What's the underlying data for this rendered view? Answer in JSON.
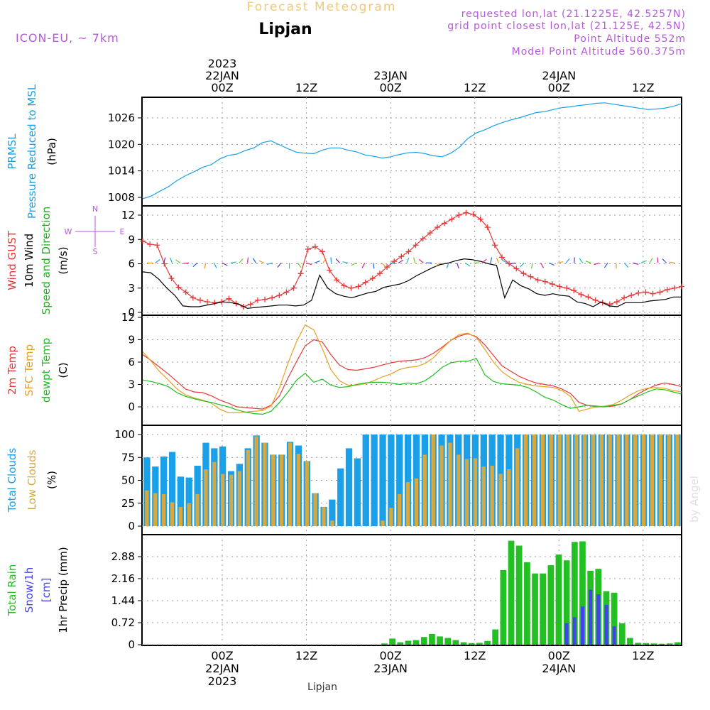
{
  "header": {
    "top_title": "Forecast Meteogram",
    "location": "Lipjan",
    "model": "ICON-EU, ~ 7km",
    "requested": "requested lon,lat (21.1225E, 42.5257N)",
    "gridpoint": "grid point closest lon,lat (21.125E, 42.5N)",
    "point_alt": "Point Altitude 552m",
    "model_alt": "Model Point Altitude 560.375m",
    "footer_location": "Lipjan",
    "watermark": "by Angel"
  },
  "colors": {
    "prmsl": "#1aa0e8",
    "gust": "#e83838",
    "wind": "#000000",
    "winddir": "#20b020",
    "t2m": "#e83838",
    "sfc": "#e8a020",
    "dewpt": "#20c020",
    "totcloud": "#1aa0e8",
    "lowcloud": "#d8a840",
    "rain": "#22c022",
    "snow": "#4444ee",
    "purple": "#b45ad8",
    "title_orange": "#f0c878"
  },
  "chart_data": {
    "type": "meteogram",
    "time": {
      "start_hour": -6,
      "step_hours": 1,
      "end_hour": 57,
      "grid_hours": [
        0,
        12,
        24,
        36,
        48,
        60
      ],
      "top_labels": [
        {
          "hour": 0,
          "lines": [
            "2023",
            "22JAN",
            "00Z"
          ]
        },
        {
          "hour": 12,
          "lines": [
            "12Z"
          ]
        },
        {
          "hour": 24,
          "lines": [
            "23JAN",
            "00Z"
          ]
        },
        {
          "hour": 36,
          "lines": [
            "12Z"
          ]
        },
        {
          "hour": 48,
          "lines": [
            "24JAN",
            "00Z"
          ]
        },
        {
          "hour": 60,
          "lines": [
            "12Z"
          ]
        }
      ],
      "bottom_labels": [
        {
          "hour": 0,
          "lines": [
            "00Z",
            "22JAN",
            "2023"
          ]
        },
        {
          "hour": 12,
          "lines": [
            "12Z"
          ]
        },
        {
          "hour": 24,
          "lines": [
            "00Z",
            "23JAN"
          ]
        },
        {
          "hour": 36,
          "lines": [
            "12Z"
          ]
        },
        {
          "hour": 48,
          "lines": [
            "00Z",
            "24JAN"
          ]
        },
        {
          "hour": 60,
          "lines": [
            "12Z"
          ]
        }
      ]
    },
    "panels": [
      {
        "id": "pressure",
        "labels": [
          {
            "text": "PRMSL",
            "color": "prmsl"
          },
          {
            "text": "Pressure Reduced to MSL",
            "color": "prmsl"
          },
          {
            "text": "(hPa)",
            "color": "wind"
          }
        ],
        "ylim": [
          1007,
          1030
        ],
        "yticks": [
          1008,
          1014,
          1020,
          1026
        ],
        "series": [
          {
            "name": "PRMSL",
            "color": "prmsl",
            "style": "line",
            "values": [
              1007.7,
              1008.3,
              1009.4,
              1010.4,
              1011.8,
              1012.9,
              1013.8,
              1014.8,
              1015.4,
              1016.7,
              1017.5,
              1017.8,
              1018.6,
              1019.2,
              1020.4,
              1020.8,
              1019.9,
              1019.0,
              1018.2,
              1018.0,
              1017.9,
              1018.7,
              1019.2,
              1019.2,
              1018.7,
              1018.3,
              1017.6,
              1017.3,
              1016.9,
              1017.2,
              1017.7,
              1018.1,
              1018.2,
              1017.9,
              1017.4,
              1017.2,
              1018.0,
              1019.3,
              1021.3,
              1022.6,
              1023.3,
              1024.2,
              1024.9,
              1025.5,
              1026.0,
              1026.6,
              1027.2,
              1027.4,
              1027.9,
              1028.3,
              1028.5,
              1028.8,
              1029.0,
              1029.3,
              1029.4,
              1029.1,
              1028.8,
              1028.5,
              1028.2,
              1027.9,
              1028.0,
              1028.2,
              1028.6,
              1029.2
            ]
          }
        ]
      },
      {
        "id": "wind",
        "labels": [
          {
            "text": "Wind GUST",
            "color": "gust"
          },
          {
            "text": "10m Wind",
            "color": "wind"
          },
          {
            "text": "Speed and Direction",
            "color": "winddir"
          },
          {
            "text": "(m/s)",
            "color": "wind"
          }
        ],
        "compass": {
          "n": "N",
          "s": "S",
          "e": "E",
          "w": "W"
        },
        "ylim": [
          0,
          13.5
        ],
        "yticks": [
          0,
          3,
          6,
          9,
          12
        ],
        "series": [
          {
            "name": "Wind GUST",
            "color": "gust",
            "style": "line-markers",
            "values": [
              8.8,
              8.4,
              8.3,
              6.0,
              4.2,
              3.1,
              2.5,
              1.8,
              1.5,
              1.3,
              1.2,
              1.3,
              1.7,
              1.1,
              0.7,
              1.0,
              1.5,
              1.6,
              1.8,
              2.1,
              2.5,
              3.0,
              4.8,
              7.8,
              8.1,
              7.5,
              5.2,
              4.0,
              3.3,
              3.0,
              3.2,
              3.7,
              4.2,
              4.8,
              5.6,
              6.3,
              6.9,
              7.5,
              8.3,
              9.1,
              9.8,
              10.5,
              11.0,
              11.5,
              12.0,
              12.3,
              12.1,
              11.5,
              10.5,
              8.3,
              6.8,
              6.0,
              5.4,
              4.8,
              4.4,
              4.0,
              3.8,
              3.5,
              3.2,
              3.0,
              2.7,
              2.2,
              1.9,
              1.5,
              1.2,
              1.0,
              1.3,
              1.8,
              2.1,
              2.4,
              2.5,
              2.3,
              2.5,
              2.8,
              3.0,
              3.2
            ]
          },
          {
            "name": "10m Wind",
            "color": "wind",
            "style": "line",
            "values": [
              5.0,
              4.9,
              4.1,
              3.0,
              2.1,
              0.8,
              0.7,
              0.7,
              0.9,
              1.1,
              1.3,
              1.2,
              1.0,
              0.5,
              0.6,
              0.7,
              0.8,
              0.9,
              0.9,
              0.8,
              0.9,
              1.5,
              4.6,
              3.0,
              2.3,
              2.0,
              1.8,
              2.1,
              2.4,
              2.6,
              3.1,
              3.3,
              3.5,
              3.9,
              4.5,
              5.0,
              5.5,
              5.9,
              6.1,
              6.4,
              6.6,
              6.5,
              6.3,
              6.0,
              5.8,
              1.8,
              4.0,
              3.3,
              2.9,
              2.3,
              2.1,
              2.3,
              2.1,
              2.0,
              1.3,
              1.1,
              0.7,
              1.3,
              0.8,
              0.7,
              1.2,
              1.2,
              1.2,
              1.4,
              1.5,
              1.6,
              1.9,
              1.9
            ]
          },
          {
            "name": "Wind Direction",
            "color": "winddir",
            "style": "arrows",
            "values": []
          }
        ]
      },
      {
        "id": "temperature",
        "labels": [
          {
            "text": "2m Temp",
            "color": "t2m"
          },
          {
            "text": "SFC Temp",
            "color": "sfc"
          },
          {
            "text": "dewpt Temp",
            "color": "dewpt"
          },
          {
            "text": "(C)",
            "color": "wind"
          }
        ],
        "ylim": [
          -2.5,
          12
        ],
        "yticks": [
          0,
          3,
          6,
          9,
          12
        ],
        "series": [
          {
            "name": "2m Temp",
            "color": "t2m",
            "style": "line",
            "values": [
              7.0,
              6.2,
              5.3,
              4.4,
              3.4,
              2.4,
              2.0,
              1.9,
              1.5,
              0.9,
              0.5,
              0.0,
              -0.1,
              -0.2,
              -0.3,
              0.2,
              1.5,
              3.9,
              6.1,
              8.2,
              9.0,
              8.7,
              7.0,
              5.6,
              5.0,
              4.9,
              5.1,
              5.3,
              5.6,
              5.9,
              6.1,
              6.2,
              6.3,
              6.6,
              7.2,
              8.0,
              8.9,
              9.5,
              9.8,
              9.4,
              8.3,
              6.9,
              5.5,
              4.8,
              4.1,
              3.6,
              3.2,
              3.0,
              2.8,
              2.4,
              1.8,
              0.6,
              0.2,
              0.1,
              0.0,
              0.1,
              0.4,
              1.0,
              1.8,
              2.4,
              2.9,
              3.2,
              3.0,
              2.7
            ]
          },
          {
            "name": "SFC Temp",
            "color": "sfc",
            "style": "line",
            "values": [
              7.4,
              6.1,
              4.7,
              3.6,
              2.4,
              1.6,
              1.2,
              0.9,
              0.5,
              -0.3,
              -0.8,
              -0.8,
              -0.7,
              -0.6,
              -0.5,
              0.1,
              2.6,
              5.9,
              8.8,
              11.0,
              10.3,
              7.8,
              5.0,
              3.5,
              2.9,
              2.9,
              3.1,
              3.5,
              4.0,
              4.4,
              5.0,
              5.3,
              5.4,
              5.8,
              6.6,
              7.8,
              8.9,
              9.7,
              9.9,
              9.3,
              7.7,
              6.0,
              4.7,
              3.9,
              3.3,
              3.0,
              2.8,
              2.7,
              2.6,
              2.2,
              1.4,
              -0.6,
              -0.3,
              0.0,
              0.1,
              0.3,
              0.9,
              1.6,
              2.2,
              2.5,
              2.6,
              2.5,
              2.2,
              2.0
            ]
          },
          {
            "name": "dewpt Temp",
            "color": "dewpt",
            "style": "line",
            "values": [
              3.6,
              3.4,
              3.1,
              2.7,
              1.9,
              1.4,
              1.1,
              0.8,
              0.6,
              0.3,
              0.0,
              -0.4,
              -0.7,
              -0.9,
              -1.0,
              -0.6,
              0.6,
              2.0,
              3.6,
              4.5,
              3.3,
              3.7,
              2.9,
              2.6,
              2.7,
              3.0,
              3.2,
              3.3,
              3.3,
              3.2,
              3.0,
              3.2,
              3.1,
              3.5,
              4.3,
              5.3,
              5.9,
              6.1,
              6.1,
              6.5,
              4.3,
              3.4,
              3.1,
              3.0,
              2.9,
              2.6,
              2.0,
              1.3,
              0.9,
              0.3,
              -0.2,
              0.0,
              0.2,
              0.0,
              0.0,
              0.2,
              0.4,
              1.0,
              1.5,
              2.0,
              2.4,
              2.3,
              2.0,
              1.7
            ]
          }
        ]
      },
      {
        "id": "clouds",
        "labels": [
          {
            "text": "Total Clouds",
            "color": "totcloud"
          },
          {
            "text": "Low Clouds",
            "color": "lowcloud"
          },
          {
            "text": "(%)",
            "color": "wind"
          }
        ],
        "ylim": [
          -2,
          105
        ],
        "yticks": [
          0,
          25,
          50,
          75,
          100
        ],
        "series": [
          {
            "name": "Total Clouds",
            "color": "totcloud",
            "style": "bars",
            "values": [
              75,
              65,
              76,
              81,
              54,
              53,
              66,
              91,
              85,
              87,
              60,
              68,
              85,
              99,
              91,
              78,
              78,
              92,
              88,
              71,
              36,
              21,
              29,
              63,
              85,
              74,
              100,
              100,
              100,
              100,
              100,
              100,
              100,
              100,
              100,
              100,
              100,
              100,
              100,
              100,
              100,
              100,
              100,
              100,
              100,
              100,
              100,
              100,
              100,
              100,
              100,
              100,
              100,
              100,
              100,
              100,
              100,
              100,
              100,
              100,
              100,
              100,
              100,
              100
            ]
          },
          {
            "name": "Low Clouds",
            "color": "lowcloud",
            "style": "bars",
            "values": [
              39,
              36,
              35,
              26,
              21,
              25,
              35,
              62,
              70,
              57,
              56,
              60,
              83,
              98,
              91,
              78,
              78,
              91,
              79,
              71,
              36,
              21,
              6,
              0,
              0,
              0,
              0,
              0,
              6,
              20,
              35,
              48,
              52,
              78,
              100,
              88,
              91,
              78,
              73,
              74,
              65,
              66,
              57,
              62,
              85,
              100,
              100,
              100,
              100,
              100,
              100,
              100,
              100,
              100,
              100,
              100,
              100,
              100,
              100,
              100,
              100,
              100,
              100,
              100
            ]
          }
        ]
      },
      {
        "id": "precip",
        "labels": [
          {
            "text": "Total  Rain",
            "color": "rain"
          },
          {
            "text": "Snow/1h",
            "color": "snow"
          },
          {
            "text": "[cm]",
            "color": "snow"
          },
          {
            "text": "1hr Precip (mm)",
            "color": "wind"
          }
        ],
        "ylim": [
          0,
          3.4
        ],
        "yticks": [
          0,
          0.72,
          1.44,
          2.16,
          2.88
        ],
        "ytick_labels": [
          "0",
          "0.72",
          "1.44",
          "2.16",
          "2.88"
        ],
        "series": [
          {
            "name": "Total Rain",
            "color": "rain",
            "style": "bars",
            "values": [
              0,
              0,
              0,
              0,
              0,
              0,
              0,
              0,
              0,
              0,
              0,
              0,
              0,
              0,
              0,
              0,
              0,
              0,
              0,
              0,
              0,
              0,
              0,
              0,
              0,
              0,
              0,
              0,
              0,
              0,
              0.04,
              0.2,
              0.08,
              0.13,
              0.15,
              0.25,
              0.35,
              0.27,
              0.22,
              0.15,
              0.08,
              0.05,
              0.06,
              0.12,
              0.5,
              2.44,
              3.4,
              3.24,
              2.7,
              2.33,
              2.33,
              2.6,
              2.95,
              2.76,
              3.36,
              3.38,
              2.42,
              2.48,
              1.75,
              1.7,
              0.7,
              0.22,
              0.06,
              0.05,
              0.04,
              0.03,
              0.04,
              0.08
            ]
          },
          {
            "name": "Snow/1h",
            "color": "snow",
            "style": "bars",
            "values": [
              0,
              0,
              0,
              0,
              0,
              0,
              0,
              0,
              0,
              0,
              0,
              0,
              0,
              0,
              0,
              0,
              0,
              0,
              0,
              0,
              0,
              0,
              0,
              0,
              0,
              0,
              0,
              0,
              0,
              0,
              0,
              0,
              0,
              0,
              0,
              0,
              0,
              0,
              0,
              0,
              0,
              0,
              0,
              0,
              0,
              0,
              0,
              0,
              0,
              0,
              0,
              0,
              0,
              0.7,
              0.9,
              1.25,
              1.8,
              1.65,
              1.3,
              0.6,
              0,
              0,
              0,
              0,
              0,
              0,
              0,
              0
            ]
          }
        ]
      }
    ]
  }
}
